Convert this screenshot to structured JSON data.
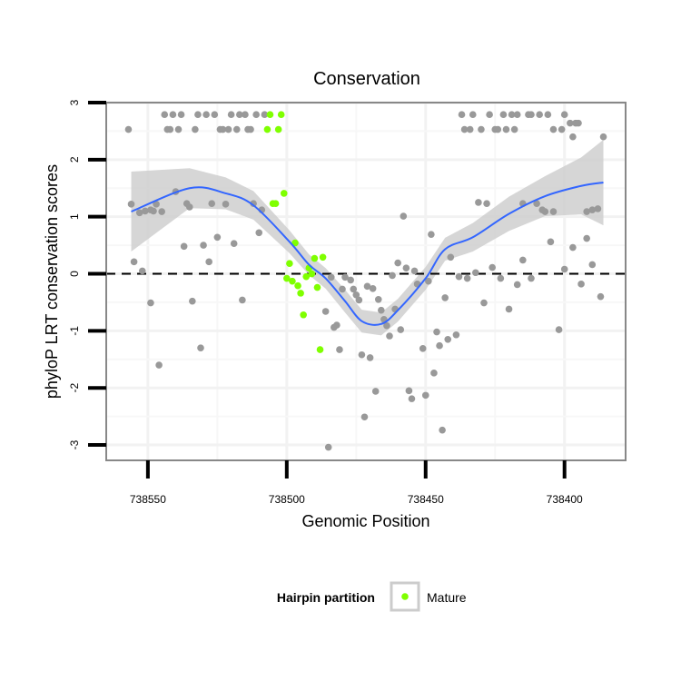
{
  "chart_data": {
    "type": "scatter",
    "title": "Conservation",
    "xlabel": "Genomic Position",
    "ylabel": "phyloP LRT conservation scores",
    "x_reversed": true,
    "xlim": [
      738565,
      738378
    ],
    "ylim": [
      -3.27,
      3.0
    ],
    "x_ticks": [
      738550,
      738500,
      738450,
      738400
    ],
    "x_tick_labels": [
      "738550",
      "738500",
      "738450",
      "738400"
    ],
    "y_ticks": [
      3,
      2,
      1,
      0,
      -1,
      -2,
      -3
    ],
    "y_tick_labels": [
      "3",
      "2",
      "1",
      "0",
      "-1",
      "-2",
      "-3"
    ],
    "grid": true,
    "reference_line": {
      "y": 0,
      "style": "dashed"
    },
    "legend": {
      "title": "Hairpin partition",
      "placement": "bottom",
      "entries": [
        {
          "label": "Mature",
          "color": "#7fff00"
        }
      ]
    },
    "colors": {
      "other": "#999999",
      "mature": "#7fff00",
      "smooth": "#3366ff",
      "ribbon": "#cccccc"
    },
    "series": [
      {
        "name": "Other",
        "points": [
          [
            738544,
            2.79
          ],
          [
            738541,
            2.79
          ],
          [
            738538,
            2.79
          ],
          [
            738532,
            2.79
          ],
          [
            738529,
            2.79
          ],
          [
            738526,
            2.79
          ],
          [
            738520,
            2.79
          ],
          [
            738517,
            2.79
          ],
          [
            738515,
            2.79
          ],
          [
            738511,
            2.79
          ],
          [
            738508,
            2.79
          ],
          [
            738437,
            2.79
          ],
          [
            738433,
            2.79
          ],
          [
            738427,
            2.79
          ],
          [
            738422,
            2.79
          ],
          [
            738419,
            2.79
          ],
          [
            738417,
            2.79
          ],
          [
            738413,
            2.79
          ],
          [
            738412,
            2.79
          ],
          [
            738409,
            2.79
          ],
          [
            738406,
            2.79
          ],
          [
            738400,
            2.79
          ],
          [
            738557,
            2.53
          ],
          [
            738543,
            2.53
          ],
          [
            738542,
            2.53
          ],
          [
            738539,
            2.53
          ],
          [
            738533,
            2.53
          ],
          [
            738524,
            2.53
          ],
          [
            738523,
            2.53
          ],
          [
            738521,
            2.53
          ],
          [
            738518,
            2.53
          ],
          [
            738514,
            2.53
          ],
          [
            738513,
            2.53
          ],
          [
            738436,
            2.53
          ],
          [
            738434,
            2.53
          ],
          [
            738430,
            2.53
          ],
          [
            738425,
            2.53
          ],
          [
            738424,
            2.53
          ],
          [
            738421,
            2.53
          ],
          [
            738418,
            2.53
          ],
          [
            738404,
            2.53
          ],
          [
            738401,
            2.53
          ],
          [
            738398,
            2.64
          ],
          [
            738396,
            2.64
          ],
          [
            738395,
            2.64
          ],
          [
            738397,
            2.4
          ],
          [
            738386,
            2.4
          ],
          [
            738540,
            1.44
          ],
          [
            738556,
            1.22
          ],
          [
            738553,
            1.07
          ],
          [
            738551,
            1.1
          ],
          [
            738549,
            1.12
          ],
          [
            738548,
            1.1
          ],
          [
            738547,
            1.22
          ],
          [
            738545,
            1.09
          ],
          [
            738536,
            1.23
          ],
          [
            738535,
            1.17
          ],
          [
            738527,
            1.23
          ],
          [
            738522,
            1.22
          ],
          [
            738512,
            1.23
          ],
          [
            738509,
            1.12
          ],
          [
            738510,
            0.72
          ],
          [
            738537,
            0.48
          ],
          [
            738530,
            0.5
          ],
          [
            738525,
            0.64
          ],
          [
            738519,
            0.53
          ],
          [
            738555,
            0.21
          ],
          [
            738552,
            0.05
          ],
          [
            738528,
            0.21
          ],
          [
            738484,
            -0.06
          ],
          [
            738479,
            -0.06
          ],
          [
            738477,
            -0.11
          ],
          [
            738549,
            -0.51
          ],
          [
            738534,
            -0.48
          ],
          [
            738516,
            -0.46
          ],
          [
            738531,
            -1.3
          ],
          [
            738546,
            -1.6
          ],
          [
            738486,
            -0.66
          ],
          [
            738483,
            -0.94
          ],
          [
            738482,
            -0.9
          ],
          [
            738481,
            -1.33
          ],
          [
            738473,
            -1.42
          ],
          [
            738472,
            -2.51
          ],
          [
            738485,
            -3.04
          ],
          [
            738480,
            -0.27
          ],
          [
            738476,
            -0.27
          ],
          [
            738475,
            -0.37
          ],
          [
            738474,
            -0.46
          ],
          [
            738471,
            -0.22
          ],
          [
            738458,
            1.01
          ],
          [
            738448,
            0.69
          ],
          [
            738431,
            1.25
          ],
          [
            738428,
            1.23
          ],
          [
            738415,
            1.23
          ],
          [
            738410,
            1.23
          ],
          [
            738408,
            1.12
          ],
          [
            738407,
            1.09
          ],
          [
            738404,
            1.09
          ],
          [
            738392,
            1.09
          ],
          [
            738390,
            1.12
          ],
          [
            738388,
            1.14
          ],
          [
            738405,
            0.56
          ],
          [
            738397,
            0.46
          ],
          [
            738392,
            0.62
          ],
          [
            738460,
            0.19
          ],
          [
            738457,
            0.1
          ],
          [
            738454,
            0.05
          ],
          [
            738441,
            0.29
          ],
          [
            738415,
            0.24
          ],
          [
            738426,
            0.11
          ],
          [
            738400,
            0.08
          ],
          [
            738390,
            0.16
          ],
          [
            738462,
            -0.03
          ],
          [
            738432,
            0.02
          ],
          [
            738435,
            -0.08
          ],
          [
            738438,
            -0.05
          ],
          [
            738423,
            -0.08
          ],
          [
            738412,
            -0.08
          ],
          [
            738469,
            -0.26
          ],
          [
            738467,
            -0.45
          ],
          [
            738466,
            -0.64
          ],
          [
            738461,
            -0.62
          ],
          [
            738465,
            -0.8
          ],
          [
            738464,
            -0.91
          ],
          [
            738463,
            -1.09
          ],
          [
            738459,
            -0.98
          ],
          [
            738453,
            -0.18
          ],
          [
            738449,
            -0.13
          ],
          [
            738443,
            -0.42
          ],
          [
            738429,
            -0.51
          ],
          [
            738446,
            -1.02
          ],
          [
            738442,
            -1.15
          ],
          [
            738439,
            -1.07
          ],
          [
            738451,
            -1.31
          ],
          [
            738445,
            -1.26
          ],
          [
            738470,
            -1.47
          ],
          [
            738447,
            -1.74
          ],
          [
            738468,
            -2.06
          ],
          [
            738456,
            -2.05
          ],
          [
            738455,
            -2.19
          ],
          [
            738450,
            -2.13
          ],
          [
            738444,
            -2.74
          ],
          [
            738420,
            -0.62
          ],
          [
            738402,
            -0.98
          ],
          [
            738417,
            -0.19
          ],
          [
            738394,
            -0.18
          ],
          [
            738387,
            -0.4
          ]
        ]
      },
      {
        "name": "Mature",
        "points": [
          [
            738506,
            2.79
          ],
          [
            738502,
            2.79
          ],
          [
            738507,
            2.53
          ],
          [
            738503,
            2.53
          ],
          [
            738501,
            1.41
          ],
          [
            738505,
            1.23
          ],
          [
            738504,
            1.23
          ],
          [
            738497,
            0.54
          ],
          [
            738499,
            0.18
          ],
          [
            738490,
            0.27
          ],
          [
            738487,
            0.29
          ],
          [
            738492,
            0.1
          ],
          [
            738493,
            -0.05
          ],
          [
            738500,
            -0.08
          ],
          [
            738491,
            0.0
          ],
          [
            738498,
            -0.13
          ],
          [
            738496,
            -0.21
          ],
          [
            738495,
            -0.34
          ],
          [
            738489,
            -0.24
          ],
          [
            738494,
            -0.72
          ],
          [
            738488,
            -1.33
          ]
        ]
      }
    ],
    "smooth": {
      "x": [
        738556,
        738535,
        738522,
        738512,
        738499,
        738492,
        738486,
        738479,
        738473,
        738466,
        738460,
        738450,
        738443,
        738433,
        738420,
        738407,
        738394,
        738386
      ],
      "y": [
        1.09,
        1.5,
        1.41,
        1.2,
        0.56,
        0.16,
        -0.08,
        -0.48,
        -0.83,
        -0.88,
        -0.64,
        -0.08,
        0.43,
        0.64,
        1.05,
        1.36,
        1.54,
        1.6
      ],
      "ci_half": [
        0.7,
        0.35,
        0.28,
        0.25,
        0.2,
        0.18,
        0.18,
        0.2,
        0.2,
        0.2,
        0.2,
        0.2,
        0.2,
        0.25,
        0.3,
        0.35,
        0.5,
        0.75
      ]
    }
  }
}
